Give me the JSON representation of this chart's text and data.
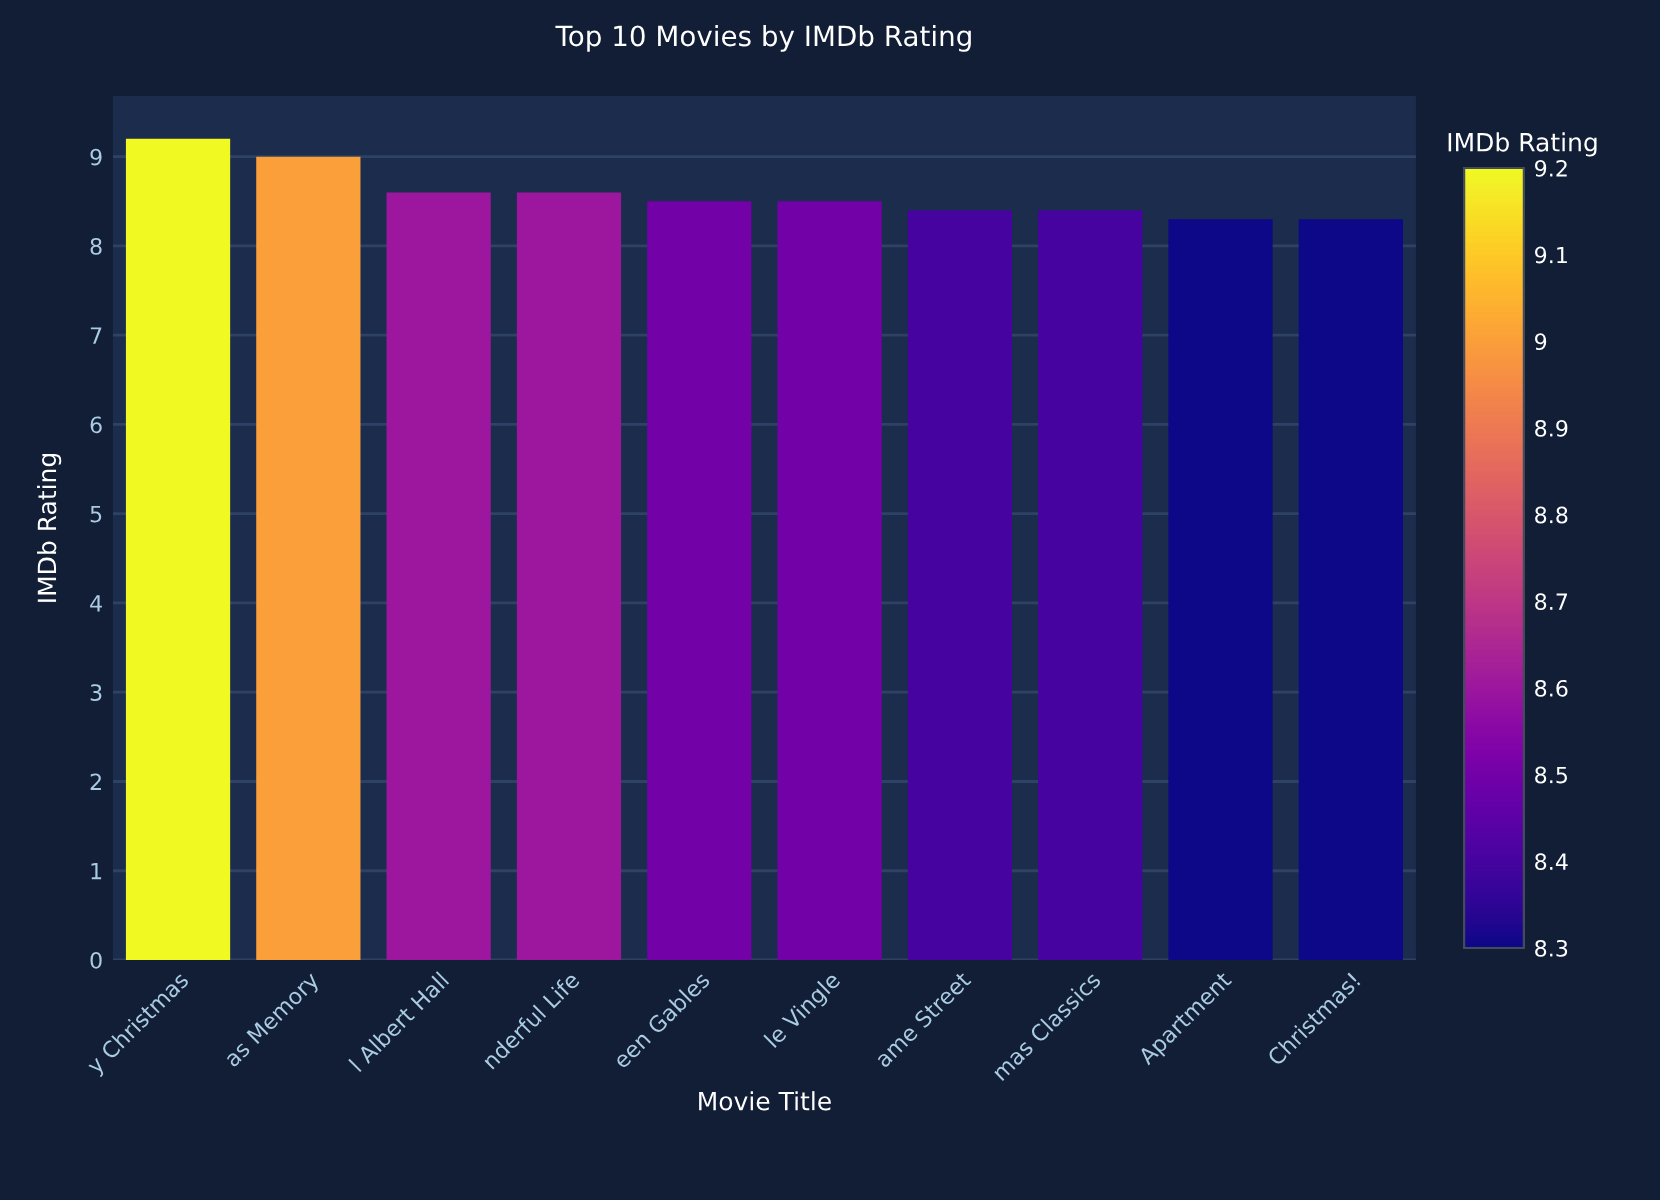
{
  "chart_data": {
    "type": "bar",
    "title": "Top 10 Movies by IMDb Rating",
    "xlabel": "Movie Title",
    "ylabel": "IMDb Rating",
    "clabel": "IMDb Rating",
    "categories": [
      "y Christmas",
      "as Memory",
      "l Albert Hall",
      "nderful Life",
      "een Gables",
      "le Vingle",
      "ame Street",
      "mas Classics",
      "Apartment",
      "Christmas!"
    ],
    "values": [
      9.2,
      9.0,
      8.6,
      8.6,
      8.5,
      8.5,
      8.4,
      8.4,
      8.3,
      8.3
    ],
    "colors": [
      "#f0f921",
      "#fb9f3a",
      "#9c179e",
      "#9c179e",
      "#7201a8",
      "#7201a8",
      "#46039f",
      "#46039f",
      "#0d0887",
      "#0d0887"
    ],
    "ylim": [
      0,
      9.68
    ],
    "yticks": [
      0,
      1,
      2,
      3,
      4,
      5,
      6,
      7,
      8,
      9
    ],
    "clim": [
      8.3,
      9.2
    ],
    "cticks": [
      8.3,
      8.4,
      8.5,
      8.6,
      8.7,
      8.8,
      8.9,
      9,
      9.1,
      9.2
    ],
    "grid": "y",
    "legend": false
  }
}
